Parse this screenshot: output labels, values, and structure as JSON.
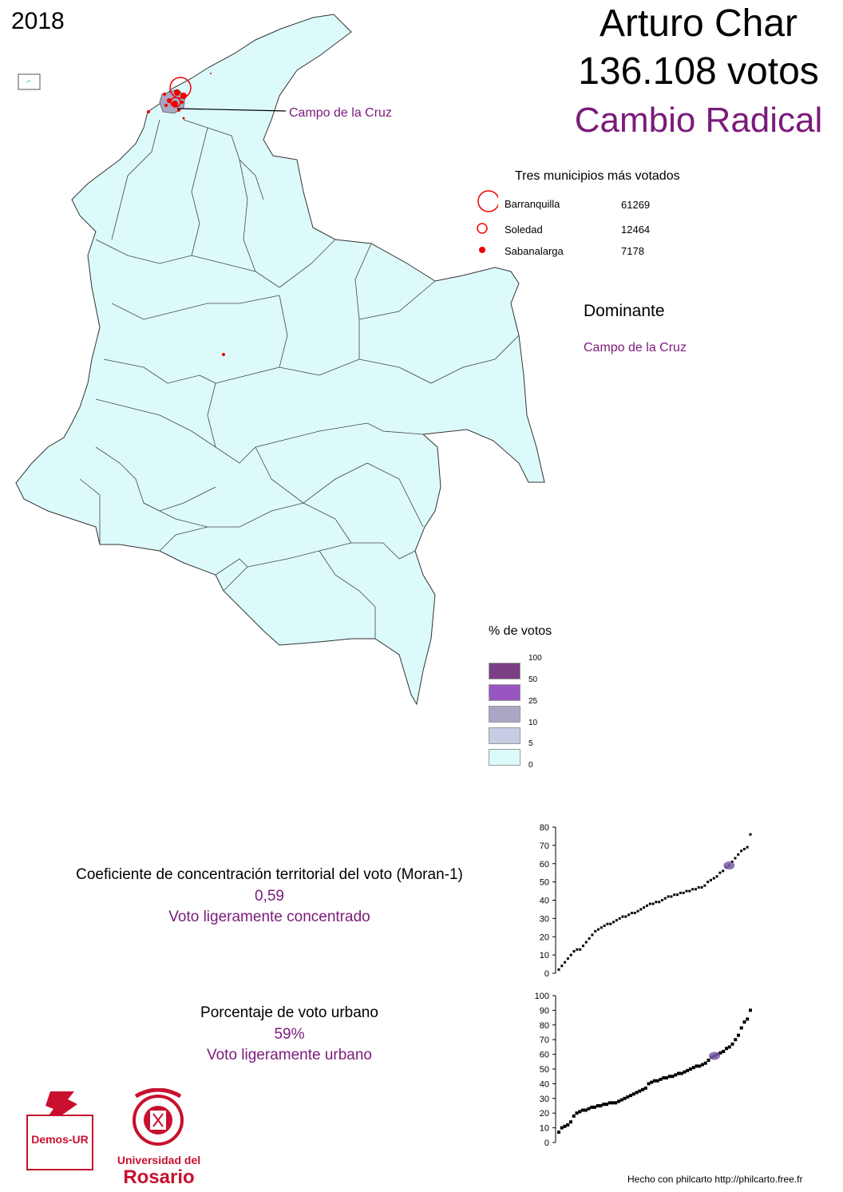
{
  "year": "2018",
  "candidate": "Arturo Char",
  "votes_text": "136.108 votos",
  "party": "Cambio Radical",
  "map": {
    "callout_label": "Campo de la Cruz"
  },
  "top_municipalities": {
    "title": "Tres municipios más votados",
    "items": [
      {
        "name": "Barranquilla",
        "votes": "61269"
      },
      {
        "name": "Soledad",
        "votes": "12464"
      },
      {
        "name": "Sabanalarga",
        "votes": "7178"
      }
    ]
  },
  "dominante": {
    "title": "Dominante",
    "value": "Campo de la Cruz"
  },
  "legend": {
    "title": "% de votos",
    "ticks": [
      "100",
      "50",
      "25",
      "10",
      "5",
      "0"
    ],
    "colors": [
      "#7a3f84",
      "#9857c0",
      "#a9a7c3",
      "#c8cce4",
      "#dcfafa"
    ]
  },
  "moran": {
    "label": "Coeficiente de concentración territorial del voto (Moran-1)",
    "value": "0,59",
    "interpretation": "Voto ligeramente concentrado"
  },
  "urban": {
    "label": "Porcentaje de voto urbano",
    "value": "59%",
    "interpretation": "Voto ligeramente urbano"
  },
  "logos": {
    "demos": "Demos-UR",
    "rosario_line1": "Universidad del",
    "rosario_line2": "Rosario"
  },
  "footer": "Hecho con philcarto http://philcarto.free.fr",
  "chart_data": [
    {
      "type": "scatter",
      "y_ticks": [
        "0",
        "10",
        "20",
        "30",
        "40",
        "50",
        "60",
        "70",
        "80"
      ],
      "ylim": [
        0,
        80
      ],
      "highlight_y": 59,
      "values": [
        2,
        4,
        6,
        8,
        10,
        12,
        13,
        13,
        15,
        17,
        19,
        21,
        23,
        24,
        25,
        26,
        27,
        27,
        28,
        29,
        30,
        31,
        31,
        32,
        33,
        33,
        34,
        35,
        36,
        37,
        38,
        38,
        39,
        39,
        40,
        41,
        42,
        42,
        43,
        43,
        44,
        44,
        45,
        45,
        46,
        46,
        47,
        47,
        48,
        50,
        51,
        52,
        53,
        55,
        56,
        58,
        59,
        61,
        63,
        65,
        67,
        68,
        69,
        76
      ]
    },
    {
      "type": "scatter",
      "y_ticks": [
        "0",
        "10",
        "20",
        "30",
        "40",
        "50",
        "60",
        "70",
        "80",
        "90",
        "100"
      ],
      "ylim": [
        0,
        100
      ],
      "highlight_y": 59,
      "values": [
        7,
        10,
        11,
        12,
        14,
        18,
        20,
        21,
        22,
        22,
        23,
        24,
        24,
        25,
        25,
        26,
        26,
        27,
        27,
        27,
        28,
        29,
        30,
        31,
        32,
        33,
        34,
        35,
        36,
        37,
        40,
        41,
        42,
        42,
        43,
        44,
        44,
        45,
        45,
        46,
        47,
        47,
        48,
        49,
        50,
        51,
        52,
        52,
        53,
        54,
        56,
        58,
        59,
        60,
        61,
        62,
        64,
        65,
        67,
        70,
        73,
        78,
        82,
        84,
        90
      ]
    }
  ]
}
